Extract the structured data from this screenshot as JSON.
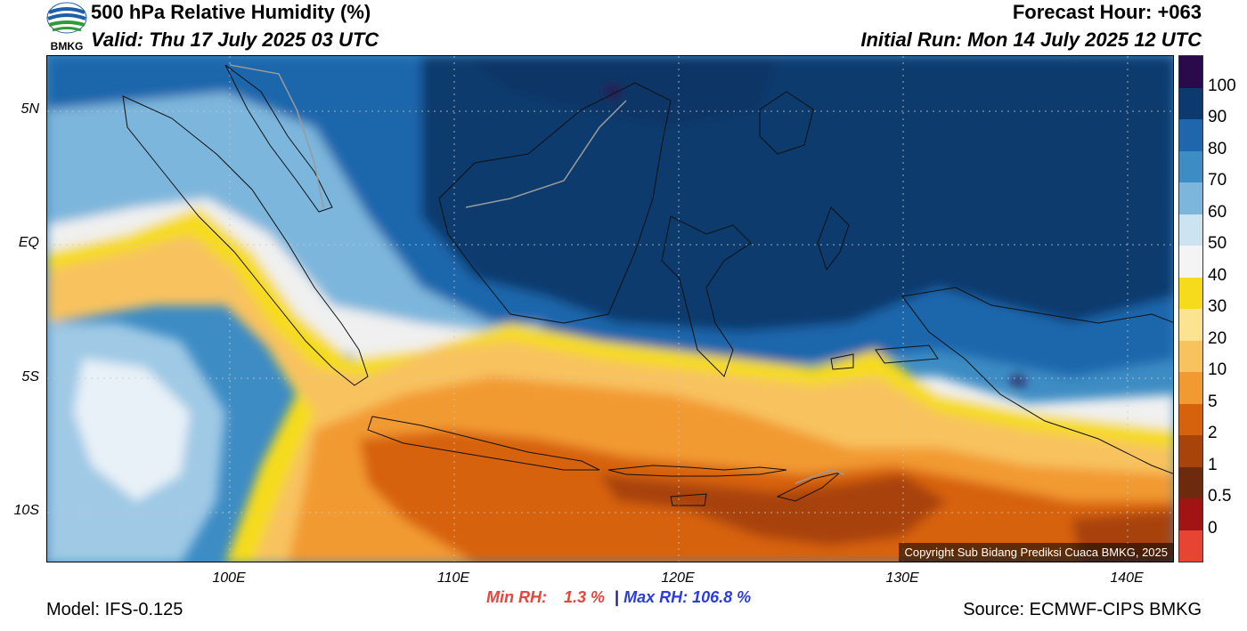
{
  "header": {
    "title": "500 hPa Relative Humidity (%)",
    "valid": "Valid: Thu 17 July 2025 03 UTC",
    "forecast_hour": "Forecast Hour: +063",
    "initial_run": "Initial Run: Mon 14 July 2025 12 UTC",
    "logo_text": "BMKG"
  },
  "map": {
    "lat_labels": [
      "5N",
      "EQ",
      "5S",
      "10S"
    ],
    "lon_labels": [
      "100E",
      "110E",
      "120E",
      "130E",
      "140E"
    ],
    "copyright": "Copyright Sub Bidang Prediksi Cuaca BMKG, 2025"
  },
  "stats": {
    "min_label": "Min RH:",
    "min_value": "1.3 %",
    "separator": "|",
    "max_label": "Max RH:",
    "max_value": "106.8 %"
  },
  "footer": {
    "model": "Model: IFS-0.125",
    "source": "Source: ECMWF-CIPS BMKG"
  },
  "colorbar": {
    "labels": [
      "100",
      "90",
      "80",
      "70",
      "60",
      "50",
      "40",
      "30",
      "20",
      "10",
      "5",
      "2",
      "1",
      "0.5",
      "0"
    ],
    "colors": [
      "#2a0a4a",
      "#0c3a6e",
      "#1f66ac",
      "#3d8cc4",
      "#7db6dc",
      "#cde3f0",
      "#f4f4f4",
      "#f6db1c",
      "#fbe392",
      "#f8c25e",
      "#f29a32",
      "#d7620e",
      "#a8430c",
      "#6e2a0c",
      "#a01414",
      "#e84434"
    ]
  }
}
